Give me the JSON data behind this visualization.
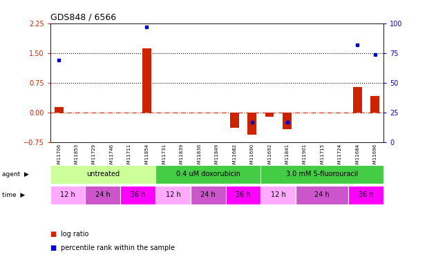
{
  "title": "GDS848 / 6566",
  "samples": [
    "GSM11706",
    "GSM11853",
    "GSM11729",
    "GSM11746",
    "GSM11711",
    "GSM11854",
    "GSM11731",
    "GSM11839",
    "GSM11836",
    "GSM11849",
    "GSM11682",
    "GSM11690",
    "GSM11692",
    "GSM11841",
    "GSM11901",
    "GSM11715",
    "GSM11724",
    "GSM11684",
    "GSM11696"
  ],
  "log_ratio": [
    0.15,
    0.0,
    0.0,
    0.0,
    0.0,
    1.62,
    0.0,
    0.0,
    0.0,
    0.0,
    -0.38,
    -0.55,
    -0.1,
    -0.42,
    0.0,
    0.0,
    0.0,
    0.65,
    0.42
  ],
  "percentile_rank_display": [
    69,
    0,
    0,
    0,
    0,
    97,
    0,
    0,
    0,
    0,
    0,
    17,
    0,
    17,
    0,
    0,
    0,
    82,
    74
  ],
  "ylim_left": [
    -0.75,
    2.25
  ],
  "ylim_right": [
    0,
    100
  ],
  "yticks_left": [
    -0.75,
    0,
    0.75,
    1.5,
    2.25
  ],
  "yticks_right": [
    0,
    25,
    50,
    75,
    100
  ],
  "hlines": [
    0.75,
    1.5
  ],
  "bar_color_red": "#cc2200",
  "bar_color_blue": "#0000cc",
  "zero_line_color": "#cc2200",
  "label_color_left": "#cc2200",
  "label_color_right": "#0000cc",
  "agent_colors": [
    "#ccff99",
    "#44cc44",
    "#44cc44"
  ],
  "agent_labels": [
    "untreated",
    "0.4 uM doxorubicin",
    "3.0 mM 5-fluorouracil"
  ],
  "agent_ranges": [
    [
      0,
      6
    ],
    [
      6,
      12
    ],
    [
      12,
      19
    ]
  ],
  "time_colors": [
    "#ffaaff",
    "#cc55cc",
    "#ff00ff",
    "#ffaaff",
    "#cc55cc",
    "#ff00ff",
    "#ffaaff",
    "#cc55cc",
    "#ff00ff"
  ],
  "time_labels": [
    "12 h",
    "24 h",
    "36 h",
    "12 h",
    "24 h",
    "36 h",
    "12 h",
    "24 h",
    "36 h"
  ],
  "time_ranges": [
    [
      0,
      2
    ],
    [
      2,
      4
    ],
    [
      4,
      6
    ],
    [
      6,
      8
    ],
    [
      8,
      10
    ],
    [
      10,
      12
    ],
    [
      12,
      14
    ],
    [
      14,
      17
    ],
    [
      17,
      19
    ]
  ]
}
